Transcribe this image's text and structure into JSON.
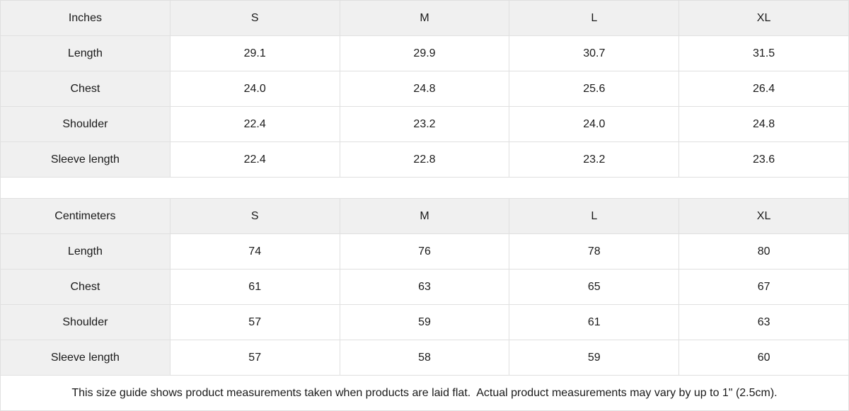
{
  "chart_data": [
    {
      "type": "table",
      "title": "Inches",
      "columns": [
        "S",
        "M",
        "L",
        "XL"
      ],
      "rows": [
        {
          "label": "Length",
          "values": [
            "29.1",
            "29.9",
            "30.7",
            "31.5"
          ]
        },
        {
          "label": "Chest",
          "values": [
            "24.0",
            "24.8",
            "25.6",
            "26.4"
          ]
        },
        {
          "label": "Shoulder",
          "values": [
            "22.4",
            "23.2",
            "24.0",
            "24.8"
          ]
        },
        {
          "label": "Sleeve length",
          "values": [
            "22.4",
            "22.8",
            "23.2",
            "23.6"
          ]
        }
      ]
    },
    {
      "type": "table",
      "title": "Centimeters",
      "columns": [
        "S",
        "M",
        "L",
        "XL"
      ],
      "rows": [
        {
          "label": "Length",
          "values": [
            "74",
            "76",
            "78",
            "80"
          ]
        },
        {
          "label": "Chest",
          "values": [
            "61",
            "63",
            "65",
            "67"
          ]
        },
        {
          "label": "Shoulder",
          "values": [
            "57",
            "59",
            "61",
            "63"
          ]
        },
        {
          "label": "Sleeve length",
          "values": [
            "57",
            "58",
            "59",
            "60"
          ]
        }
      ]
    }
  ],
  "footer_note": "This size guide shows product measurements taken when products are laid flat.  Actual product measurements may vary by up to 1\" (2.5cm).",
  "colors": {
    "header_bg": "#f0f0f0",
    "cell_bg": "#ffffff",
    "border": "#e0e0e0",
    "text": "#1a1a1a"
  }
}
